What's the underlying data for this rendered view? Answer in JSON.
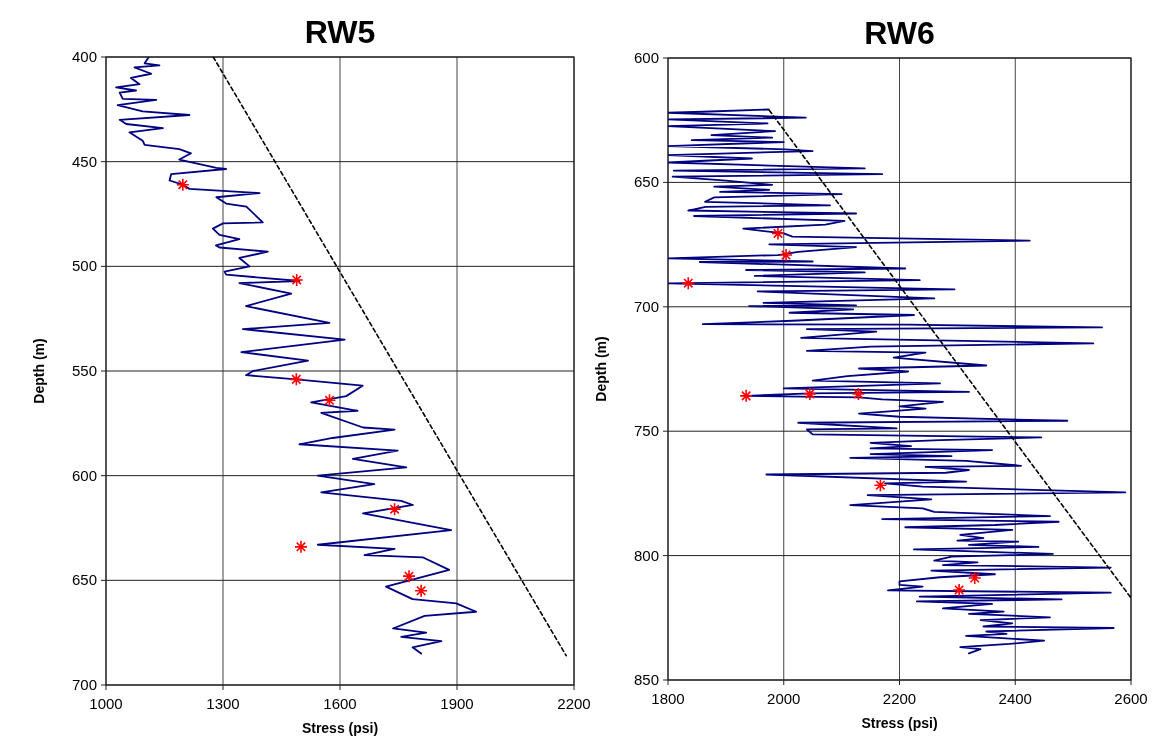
{
  "chart_data": [
    {
      "type": "line",
      "title": "RW5",
      "xlabel": "Stress (psi)",
      "ylabel": "Depth (m)",
      "xlim": [
        1000,
        2200
      ],
      "xticks": [
        1000,
        1300,
        1600,
        1900,
        2200
      ],
      "ylim": [
        700,
        400
      ],
      "yticks": [
        400,
        450,
        500,
        550,
        600,
        650,
        700
      ],
      "grid": true,
      "series": [
        {
          "color": "#000080",
          "marker": "none",
          "line_style": "solid",
          "x": [
            1110,
            1099,
            1137,
            1073,
            1116,
            1064,
            1086,
            1026,
            1077,
            1035,
            1043,
            1129,
            1030,
            1094,
            1214,
            1035,
            1052,
            1146,
            1060,
            1094,
            1099,
            1188,
            1218,
            1188,
            1283,
            1308,
            1167,
            1163,
            1197,
            1214,
            1394,
            1283,
            1308,
            1360,
            1402,
            1300,
            1274,
            1291,
            1342,
            1282,
            1291,
            1415,
            1342,
            1368,
            1304,
            1308,
            1496,
            1342,
            1475,
            1359,
            1573,
            1351,
            1612,
            1347,
            1518,
            1377,
            1359,
            1488,
            1658,
            1616,
            1526,
            1645,
            1552,
            1659,
            1740,
            1581,
            1496,
            1748,
            1633,
            1770,
            1543,
            1688,
            1552,
            1757,
            1787,
            1659,
            1885,
            1543,
            1740,
            1663,
            1812,
            1880,
            1718,
            1786,
            1898,
            1949,
            1817,
            1736,
            1821,
            1757,
            1860,
            1786,
            1808
          ],
          "values": [
            400,
            403,
            404,
            405,
            408,
            410,
            413,
            414.5,
            416,
            417,
            420,
            420.5,
            423,
            426,
            427.7,
            430,
            432,
            434,
            436,
            440,
            442,
            444,
            446,
            449,
            453,
            453.5,
            456,
            459,
            461,
            463,
            465,
            467,
            470,
            471.5,
            479,
            479.5,
            482,
            485,
            487,
            490,
            491,
            493,
            496,
            500,
            502.5,
            504,
            507,
            508,
            513,
            519,
            527,
            530,
            535,
            541,
            545,
            550,
            552,
            554,
            557,
            562,
            565,
            569,
            570,
            577,
            578,
            582,
            585,
            588,
            592,
            596,
            600,
            604,
            608,
            612,
            614,
            618,
            626,
            633,
            635,
            638,
            639,
            645,
            653,
            659,
            661,
            665,
            667,
            673,
            675,
            677,
            679,
            682,
            685
          ]
        },
        {
          "color": "#000000",
          "marker": "none",
          "line_style": "dashed",
          "x": [
            1275,
            2180
          ],
          "values": [
            400,
            686
          ]
        },
        {
          "type": "scatter",
          "color": "#ff0000",
          "marker": "cross",
          "x": [
            1197,
            1489,
            1488,
            1573,
            1740,
            1500,
            1777,
            1808
          ],
          "values": [
            461,
            506.5,
            554,
            564,
            616,
            634,
            648,
            655
          ]
        }
      ]
    },
    {
      "type": "line",
      "title": "RW6",
      "xlabel": "Stress (psi)",
      "ylabel": "Depth (m)",
      "xlim": [
        1800,
        2600
      ],
      "xticks": [
        1800,
        2000,
        2200,
        2400,
        2600
      ],
      "ylim": [
        850,
        600
      ],
      "yticks": [
        600,
        650,
        700,
        750,
        800,
        850
      ],
      "grid": true,
      "series": [
        {
          "color": "#000080",
          "marker": "none",
          "line_style": "solid",
          "x": [
            1974,
            1860,
            1800,
            2038,
            1800,
            1972,
            1800,
            1985,
            1875,
            1980,
            1841,
            2000,
            1800,
            2002,
            2050,
            1800,
            1945,
            1800,
            2140,
            1810,
            2170,
            1808,
            1900,
            1980,
            1880,
            1975,
            1890,
            2100,
            1880,
            1864,
            2080,
            1865,
            1835,
            2125,
            1845,
            2105,
            2072,
            1930,
            2000,
            2015,
            2425,
            1975,
            2125,
            2025,
            1990,
            1800,
            2050,
            1855,
            2210,
            1935,
            2140,
            1950,
            2235,
            1800,
            2295,
            1955,
            2260,
            1965,
            2125,
            1940,
            2120,
            2010,
            2225,
            2015,
            1860,
            2215,
            2550,
            2040,
            2160,
            2030,
            2535,
            2150,
            2040,
            2245,
            2190,
            2350,
            2130,
            2215,
            2110,
            2050,
            2270,
            2000,
            2160,
            2320,
            2045,
            1935,
            2130,
            2170,
            2275,
            2200,
            2245,
            2130,
            2200,
            2490,
            2025,
            2195,
            2040,
            2050,
            2445,
            2270,
            2150,
            2220,
            2150,
            2360,
            2150,
            2290,
            2115,
            2315,
            2410,
            2245,
            2320,
            2280,
            1970,
            2315,
            2175,
            2240,
            2590,
            2145,
            2255,
            2115,
            2240,
            2260,
            2460,
            2170,
            2475,
            2365,
            2210,
            2395,
            2305,
            2345,
            2300,
            2405,
            2320,
            2440,
            2225,
            2340,
            2465,
            2290,
            2260,
            2335,
            2275,
            2565,
            2255,
            2365,
            2270,
            2200,
            2200,
            2240,
            2180,
            2565,
            2235,
            2480,
            2230,
            2360,
            2275,
            2380,
            2320,
            2460,
            2340,
            2395,
            2345,
            2570,
            2350,
            2385,
            2315,
            2450,
            2390,
            2305,
            2340,
            2320
          ],
          "values": [
            620.7,
            621.6,
            622,
            624,
            624.7,
            626.3,
            627.4,
            629.4,
            631,
            632,
            633,
            633.8,
            635.4,
            636.7,
            637.4,
            639,
            640.4,
            642,
            644.4,
            645.3,
            646.7,
            647.7,
            649.3,
            651,
            651.7,
            653,
            653.8,
            654.7,
            656,
            657.8,
            659.2,
            659.8,
            661.3,
            662.5,
            663.5,
            665.5,
            667,
            668.6,
            670.5,
            671.8,
            673.4,
            674.9,
            676,
            677.9,
            679.2,
            680.5,
            681.8,
            682,
            684.6,
            685.2,
            686.2,
            687.6,
            689.3,
            690.6,
            693,
            693.8,
            696.6,
            698.4,
            699.4,
            699.7,
            701,
            702.4,
            703.3,
            705.6,
            707,
            707.2,
            708.3,
            709,
            710,
            712.5,
            714.7,
            716,
            717.7,
            718.4,
            720.4,
            723.6,
            724.8,
            726,
            727.9,
            729.7,
            730.8,
            732.8,
            733.5,
            734.2,
            734.8,
            735.8,
            736.4,
            737.2,
            738.2,
            740,
            740.9,
            742.9,
            744.2,
            745.8,
            746.6,
            748.9,
            749.3,
            751.3,
            752.5,
            753.6,
            754.7,
            756,
            756.9,
            757.6,
            759.2,
            760,
            760.7,
            761.9,
            763.9,
            764.3,
            765.6,
            766.7,
            767.4,
            770.3,
            771,
            772.3,
            774.6,
            775.7,
            777.4,
            779.7,
            781,
            782.4,
            784.1,
            785.3,
            786.4,
            787.7,
            788.6,
            789.7,
            791.7,
            793,
            794,
            794.4,
            795.7,
            796.5,
            797.5,
            798.4,
            799.3,
            800.4,
            802,
            802.7,
            803.8,
            804.8,
            806,
            807.5,
            808.7,
            810.4,
            811.8,
            812.5,
            814,
            814.9,
            816.5,
            817.6,
            818.4,
            819.4,
            821.2,
            822.5,
            823.4,
            824.8,
            825.9,
            827.2,
            828.5,
            829.1,
            830.5,
            831.5,
            832.3,
            834.2,
            835.5,
            836.8,
            837.6,
            839.3
          ]
        },
        {
          "color": "#000000",
          "marker": "none",
          "line_style": "dashed",
          "x": [
            1975,
            2600
          ],
          "values": [
            621,
            817
          ]
        },
        {
          "type": "scatter",
          "color": "#ff0000",
          "marker": "cross",
          "x": [
            1990,
            2004,
            1835,
            1935,
            2045,
            2129,
            2167,
            2330,
            2303
          ],
          "values": [
            670.5,
            679.2,
            690.5,
            735.8,
            735,
            735,
            771.7,
            809,
            813.8
          ]
        }
      ]
    }
  ]
}
